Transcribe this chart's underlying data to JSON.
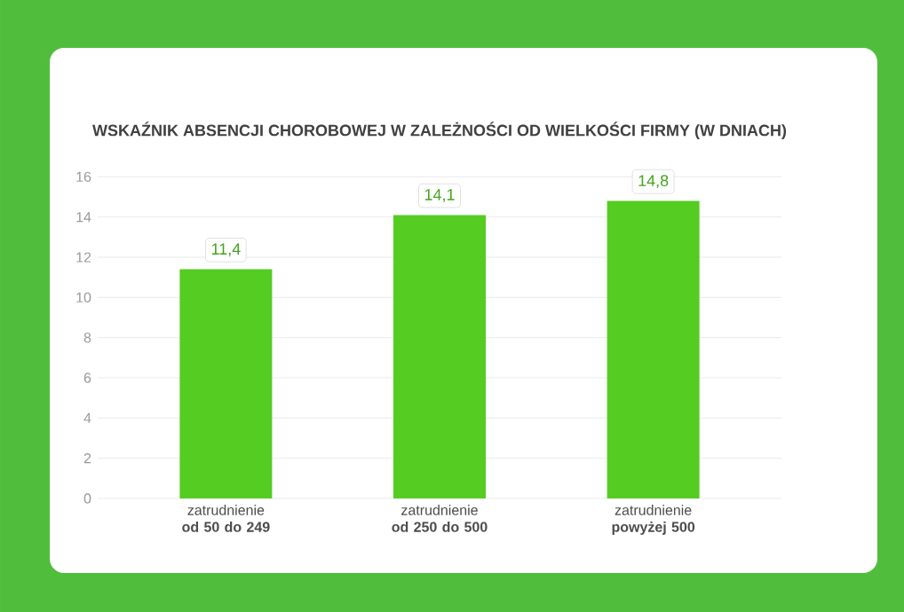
{
  "chart_data": {
    "type": "bar",
    "title": "WSKAŹNIK ABSENCJI CHOROBOWEJ W ZALEŻNOŚCI OD WIELKOŚCI FIRMY (W DNIACH)",
    "categories": [
      "zatrudnienie **od 50 do 249**",
      "zatrudnienie **od 250 do 500**",
      "zatrudnienie **powyżej 500**"
    ],
    "values": [
      11.4,
      14.1,
      14.8
    ],
    "value_labels": [
      "11,4",
      "14,1",
      "14,8"
    ],
    "color": "#55cc22",
    "ylim": [
      0,
      16.5
    ],
    "yticks": [
      0,
      2,
      4,
      6,
      8,
      10,
      12,
      14,
      16
    ],
    "grid": "y"
  }
}
